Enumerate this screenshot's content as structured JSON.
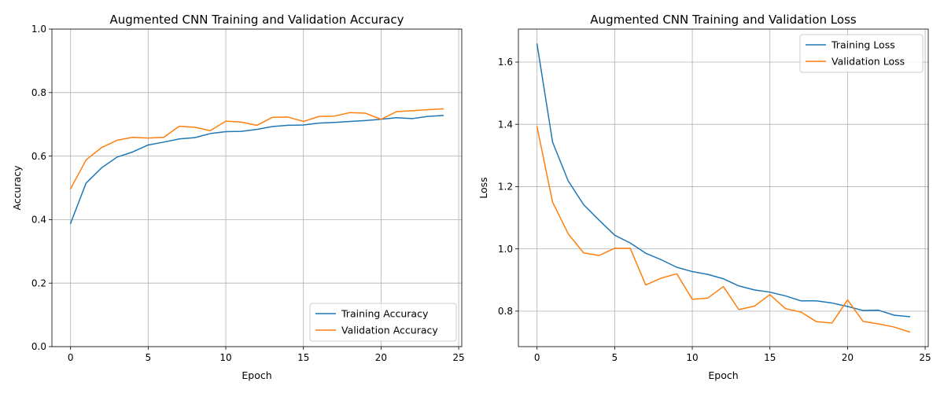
{
  "chart_data": [
    {
      "type": "line",
      "title": "Augmented CNN Training and Validation Accuracy",
      "xlabel": "Epoch",
      "ylabel": "Accuracy",
      "xlim": [
        -1.2,
        25.2
      ],
      "ylim": [
        0.0,
        1.0
      ],
      "xticks": [
        0,
        5,
        10,
        15,
        20,
        25
      ],
      "yticks": [
        0.0,
        0.2,
        0.4,
        0.6,
        0.8,
        1.0
      ],
      "xtick_labels": [
        "0",
        "5",
        "10",
        "15",
        "20",
        "25"
      ],
      "ytick_labels": [
        "0.0",
        "0.2",
        "0.4",
        "0.6",
        "0.8",
        "1.0"
      ],
      "grid": true,
      "legend_position": "bottom-right",
      "x": [
        0,
        1,
        2,
        3,
        4,
        5,
        6,
        7,
        8,
        9,
        10,
        11,
        12,
        13,
        14,
        15,
        16,
        17,
        18,
        19,
        20,
        21,
        22,
        23,
        24
      ],
      "series": [
        {
          "name": "Training Accuracy",
          "color": "#1f77b4",
          "values": [
            0.388,
            0.515,
            0.563,
            0.597,
            0.613,
            0.635,
            0.644,
            0.654,
            0.658,
            0.671,
            0.677,
            0.678,
            0.684,
            0.693,
            0.697,
            0.698,
            0.704,
            0.706,
            0.709,
            0.712,
            0.716,
            0.721,
            0.718,
            0.725,
            0.728
          ]
        },
        {
          "name": "Validation Accuracy",
          "color": "#ff7f0e",
          "values": [
            0.497,
            0.588,
            0.627,
            0.65,
            0.659,
            0.657,
            0.659,
            0.694,
            0.691,
            0.68,
            0.71,
            0.707,
            0.697,
            0.722,
            0.723,
            0.709,
            0.725,
            0.726,
            0.737,
            0.735,
            0.716,
            0.74,
            0.743,
            0.746,
            0.749
          ]
        }
      ]
    },
    {
      "type": "line",
      "title": "Augmented CNN Training and Validation Loss",
      "xlabel": "Epoch",
      "ylabel": "Loss",
      "xlim": [
        -1.2,
        25.2
      ],
      "ylim": [
        0.686,
        1.706
      ],
      "xticks": [
        0,
        5,
        10,
        15,
        20,
        25
      ],
      "yticks": [
        0.8,
        1.0,
        1.2,
        1.4,
        1.6
      ],
      "xtick_labels": [
        "0",
        "5",
        "10",
        "15",
        "20",
        "25"
      ],
      "ytick_labels": [
        "0.8",
        "1.0",
        "1.2",
        "1.4",
        "1.6"
      ],
      "grid": true,
      "legend_position": "top-right",
      "x": [
        0,
        1,
        2,
        3,
        4,
        5,
        6,
        7,
        8,
        9,
        10,
        11,
        12,
        13,
        14,
        15,
        16,
        17,
        18,
        19,
        20,
        21,
        22,
        23,
        24
      ],
      "series": [
        {
          "name": "Training Loss",
          "color": "#1f77b4",
          "values": [
            1.658,
            1.343,
            1.219,
            1.142,
            1.092,
            1.044,
            1.019,
            0.986,
            0.965,
            0.941,
            0.927,
            0.918,
            0.904,
            0.881,
            0.868,
            0.861,
            0.849,
            0.833,
            0.833,
            0.826,
            0.815,
            0.802,
            0.803,
            0.787,
            0.782
          ]
        },
        {
          "name": "Validation Loss",
          "color": "#ff7f0e",
          "values": [
            1.392,
            1.15,
            1.049,
            0.987,
            0.979,
            1.002,
            1.002,
            0.884,
            0.906,
            0.92,
            0.838,
            0.842,
            0.879,
            0.805,
            0.816,
            0.853,
            0.808,
            0.797,
            0.766,
            0.762,
            0.836,
            0.767,
            0.759,
            0.749,
            0.733
          ]
        }
      ]
    }
  ]
}
